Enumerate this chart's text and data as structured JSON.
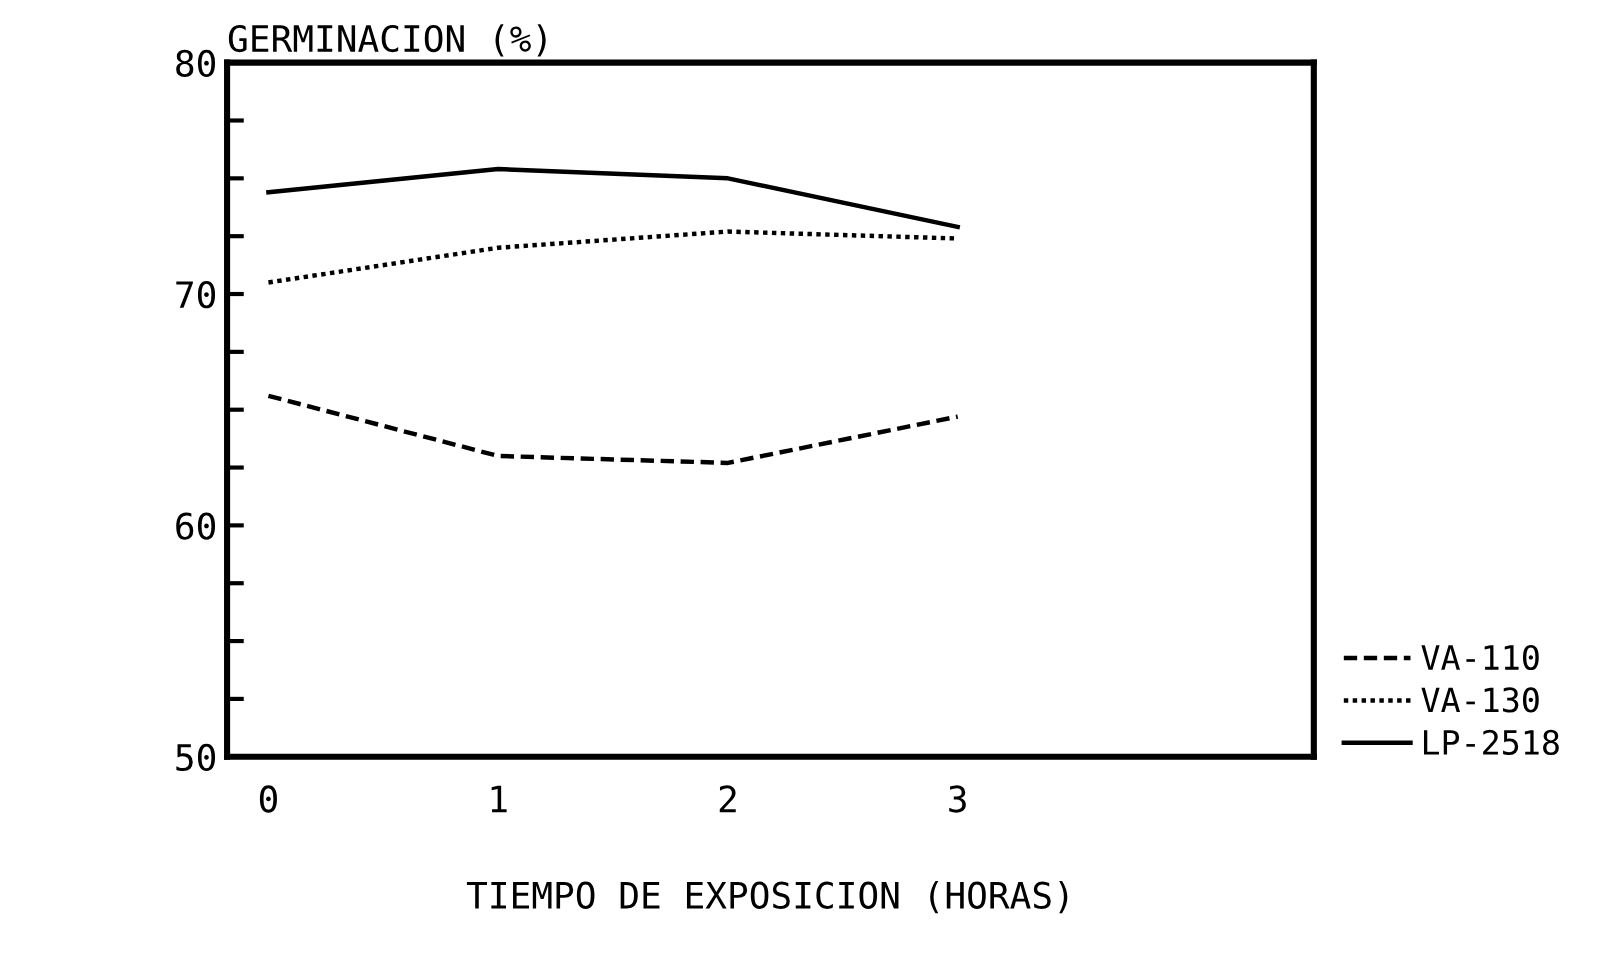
{
  "chart_data": {
    "type": "line",
    "ylabel": "GERMINACION (%)",
    "xlabel": "TIEMPO DE EXPOSICION (HORAS)",
    "x": [
      0,
      1,
      2,
      3
    ],
    "series": [
      {
        "name": "VA-110",
        "color": "#000000",
        "line_style": "dashed",
        "values": [
          65.6,
          63.0,
          62.7,
          64.7
        ]
      },
      {
        "name": "VA-130",
        "color": "#000000",
        "line_style": "dotted",
        "values": [
          70.5,
          72.0,
          72.7,
          72.4
        ]
      },
      {
        "name": "LP-2518",
        "color": "#000000",
        "line_style": "solid",
        "values": [
          74.4,
          75.4,
          75.0,
          72.9
        ]
      }
    ],
    "xlim": [
      -0.18,
      4.55
    ],
    "xticks": [
      0,
      1,
      2,
      3
    ],
    "ylim": [
      50,
      80
    ],
    "yticks": [
      50,
      {
        "value": 52.5,
        "label": null
      },
      {
        "value": 55,
        "label": null
      },
      {
        "value": 57.5,
        "label": null
      },
      60,
      {
        "value": 62.5,
        "label": null
      },
      {
        "value": 65,
        "label": null
      },
      {
        "value": 67.5,
        "label": null
      },
      70,
      {
        "value": 72.5,
        "label": null
      },
      {
        "value": 75,
        "label": null
      },
      {
        "value": 77.5,
        "label": null
      },
      80
    ],
    "grid": false,
    "legend": "bottom right",
    "marker": "none"
  }
}
